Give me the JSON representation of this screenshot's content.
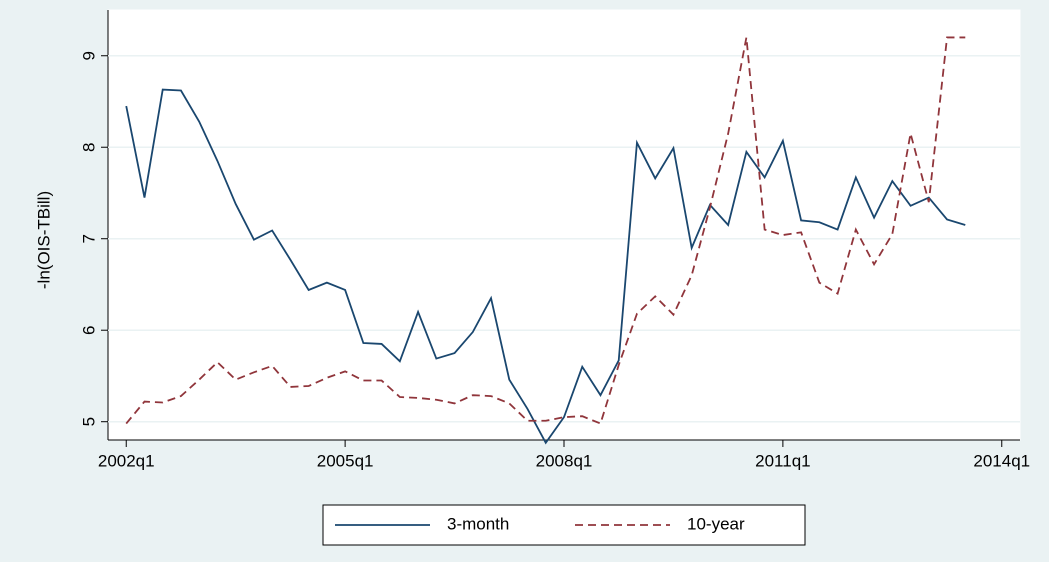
{
  "chart_data": {
    "type": "line",
    "y_label": "-ln(OIS-TBill)",
    "x": [
      "2002q1",
      "2002q2",
      "2002q3",
      "2002q4",
      "2003q1",
      "2003q2",
      "2003q3",
      "2003q4",
      "2004q1",
      "2004q2",
      "2004q3",
      "2004q4",
      "2005q1",
      "2005q2",
      "2005q3",
      "2005q4",
      "2006q1",
      "2006q2",
      "2006q3",
      "2006q4",
      "2007q1",
      "2007q2",
      "2007q3",
      "2007q4",
      "2008q1",
      "2008q2",
      "2008q3",
      "2008q4",
      "2009q1",
      "2009q2",
      "2009q3",
      "2009q4",
      "2010q1",
      "2010q2",
      "2010q3",
      "2010q4",
      "2011q1",
      "2011q2",
      "2011q3",
      "2011q4",
      "2012q1",
      "2012q2",
      "2012q3",
      "2012q4",
      "2013q1",
      "2013q2",
      "2013q3"
    ],
    "series": [
      {
        "name": "3-month",
        "color": "#1a476f",
        "dash": "none",
        "values": [
          8.45,
          7.45,
          8.63,
          8.62,
          8.28,
          7.85,
          7.38,
          6.99,
          7.09,
          6.77,
          6.44,
          6.52,
          6.44,
          5.86,
          5.85,
          5.66,
          6.2,
          5.69,
          5.75,
          5.98,
          6.35,
          5.46,
          5.14,
          4.77,
          5.05,
          5.6,
          5.29,
          5.67,
          8.05,
          7.66,
          7.99,
          6.9,
          7.37,
          7.15,
          7.95,
          7.67,
          8.07,
          7.2,
          7.18,
          7.1,
          7.67,
          7.23,
          7.63,
          7.36,
          7.45,
          7.21,
          7.15
        ]
      },
      {
        "name": "10-year",
        "color": "#90353b",
        "dash": "8 5",
        "values": [
          4.98,
          5.22,
          5.21,
          5.28,
          5.46,
          5.65,
          5.46,
          5.54,
          5.61,
          5.38,
          5.39,
          5.48,
          5.55,
          5.45,
          5.45,
          5.27,
          5.26,
          5.24,
          5.2,
          5.29,
          5.28,
          5.2,
          5.01,
          5.01,
          5.05,
          5.06,
          4.98,
          5.62,
          6.18,
          6.37,
          6.17,
          6.6,
          7.34,
          8.15,
          9.2,
          7.1,
          7.04,
          7.07,
          6.52,
          6.4,
          7.1,
          6.72,
          7.05,
          8.15,
          7.4,
          9.2,
          9.2
        ]
      }
    ],
    "xlim": [
      "2001q4",
      "2014q2"
    ],
    "xticks": [
      "2002q1",
      "2005q1",
      "2008q1",
      "2011q1",
      "2014q1"
    ],
    "ylim": [
      4.8,
      9.5
    ],
    "yticks": [
      5,
      6,
      7,
      8,
      9
    ],
    "grid": true,
    "legend": "bottom"
  }
}
